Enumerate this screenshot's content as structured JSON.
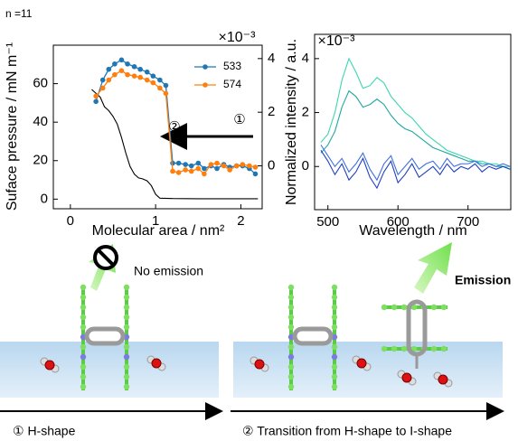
{
  "labels": {
    "panel_note": "n =11",
    "no_emission": "No emission",
    "emission": "Emission",
    "stage1": "① H-shape",
    "stage2": "② Transition from H-shape to I-shape"
  },
  "chart_data": [
    {
      "type": "line",
      "xlabel": "Molecular area / nm²",
      "ylabel": "Suface pressure / mN m⁻¹",
      "y2_offset_label": "×10⁻³",
      "xlim": [
        -0.2,
        2.25
      ],
      "xticks": [
        0,
        1,
        2
      ],
      "ylim": [
        -5,
        80
      ],
      "yticks": [
        0,
        20,
        40,
        60
      ],
      "y2lim": [
        -1.6,
        4.5
      ],
      "y2ticks": [
        0,
        2,
        4
      ],
      "legend": "upper right",
      "annotations": [
        "②",
        "①"
      ],
      "series": [
        {
          "color": "#000000",
          "marker": false,
          "x": [
            0.25,
            0.3,
            0.35,
            0.4,
            0.45,
            0.5,
            0.55,
            0.6,
            0.65,
            0.7,
            0.75,
            0.8,
            0.85,
            0.9,
            0.95,
            1.0,
            1.05,
            1.2,
            1.5,
            2.2
          ],
          "values": [
            57,
            55,
            53,
            48,
            46,
            43,
            39,
            32,
            24,
            17,
            13,
            11,
            10.5,
            9.5,
            7,
            2.5,
            0.5,
            0.3,
            0.2,
            0.2
          ]
        },
        {
          "name": "533",
          "color": "#1f77b4",
          "marker": true,
          "axis": "y2",
          "x": [
            0.3,
            0.38,
            0.45,
            0.52,
            0.6,
            0.67,
            0.75,
            0.82,
            0.9,
            0.97,
            1.05,
            1.12,
            1.2,
            1.27,
            1.35,
            1.42,
            1.5,
            1.57,
            1.65,
            1.72,
            1.8,
            1.87,
            1.95,
            2.02,
            2.1,
            2.17
          ],
          "values": [
            2.4,
            3.2,
            3.6,
            3.8,
            3.95,
            3.8,
            3.7,
            3.6,
            3.5,
            3.35,
            3.2,
            3.0,
            0.1,
            0.1,
            0.05,
            0.0,
            0.1,
            -0.1,
            0.0,
            -0.1,
            0.05,
            -0.05,
            0.0,
            0.0,
            -0.1,
            -0.3
          ]
        },
        {
          "name": "574",
          "color": "#ff7f0e",
          "marker": true,
          "axis": "y2",
          "x": [
            0.3,
            0.38,
            0.45,
            0.52,
            0.6,
            0.67,
            0.75,
            0.82,
            0.9,
            0.97,
            1.05,
            1.12,
            1.2,
            1.27,
            1.35,
            1.42,
            1.5,
            1.57,
            1.65,
            1.72,
            1.8,
            1.87,
            1.95,
            2.02,
            2.1,
            2.17
          ],
          "values": [
            2.6,
            2.9,
            3.2,
            3.4,
            3.55,
            3.4,
            3.35,
            3.3,
            3.2,
            3.1,
            2.9,
            2.7,
            -0.2,
            -0.25,
            -0.15,
            -0.2,
            -0.1,
            -0.3,
            0.05,
            0.1,
            0.0,
            -0.15,
            0.0,
            0.05,
            0.0,
            -0.05
          ]
        }
      ]
    },
    {
      "type": "line",
      "xlabel": "Wavelength / nm",
      "ylabel": "Normalized intensity / a.u.",
      "y_offset_label": "×10⁻³",
      "xlim": [
        481,
        761
      ],
      "xticks": [
        500,
        600,
        700
      ],
      "ylim": [
        -1.6,
        4.9
      ],
      "yticks": [
        0,
        2,
        4
      ],
      "series": [
        {
          "color": "#3cd6b0",
          "x": [
            490,
            500,
            510,
            520,
            530,
            540,
            550,
            560,
            570,
            580,
            590,
            600,
            610,
            620,
            630,
            640,
            650,
            660,
            670,
            680,
            690,
            700,
            710,
            720,
            730,
            740,
            750,
            760
          ],
          "values": [
            0.9,
            1.2,
            2.0,
            3.2,
            4.0,
            3.5,
            2.9,
            3.0,
            3.3,
            3.1,
            2.6,
            2.3,
            2.0,
            1.8,
            1.5,
            1.2,
            1.0,
            0.8,
            0.6,
            0.5,
            0.4,
            0.3,
            0.2,
            0.2,
            0.1,
            0.1,
            0.0,
            0.0
          ]
        },
        {
          "color": "#1fa8a0",
          "x": [
            490,
            500,
            510,
            520,
            530,
            540,
            550,
            560,
            570,
            580,
            590,
            600,
            610,
            620,
            630,
            640,
            650,
            660,
            670,
            680,
            690,
            700,
            710,
            720,
            730,
            740,
            750,
            760
          ],
          "values": [
            0.5,
            0.8,
            1.3,
            2.2,
            2.8,
            2.6,
            2.2,
            2.3,
            2.5,
            2.3,
            1.9,
            1.6,
            1.4,
            1.3,
            1.1,
            0.9,
            0.7,
            0.6,
            0.5,
            0.4,
            0.3,
            0.2,
            0.2,
            0.1,
            0.1,
            0.0,
            0.0,
            -0.1
          ]
        },
        {
          "color": "#1f3fbf",
          "x": [
            490,
            500,
            510,
            520,
            530,
            540,
            550,
            560,
            570,
            580,
            590,
            600,
            610,
            620,
            630,
            640,
            650,
            660,
            670,
            680,
            690,
            700,
            710,
            720,
            730,
            740,
            750,
            760
          ],
          "values": [
            0.6,
            0.2,
            -0.3,
            0.1,
            -0.5,
            -0.2,
            0.3,
            -0.4,
            -0.8,
            -0.2,
            0.2,
            -0.6,
            -0.3,
            0.1,
            -0.4,
            -0.2,
            0.0,
            -0.3,
            0.1,
            -0.2,
            0.0,
            -0.1,
            0.1,
            -0.2,
            0.0,
            -0.1,
            0.0,
            -0.1
          ]
        },
        {
          "color": "#3f6fe0",
          "x": [
            490,
            500,
            510,
            520,
            530,
            540,
            550,
            560,
            570,
            580,
            590,
            600,
            610,
            620,
            630,
            640,
            650,
            660,
            670,
            680,
            690,
            700,
            710,
            720,
            730,
            740,
            750,
            760
          ],
          "values": [
            0.8,
            0.4,
            0.0,
            0.3,
            -0.2,
            0.1,
            0.5,
            -0.1,
            -0.5,
            0.1,
            0.4,
            -0.3,
            0.0,
            0.3,
            -0.1,
            0.1,
            0.2,
            -0.1,
            0.3,
            0.0,
            0.1,
            0.1,
            0.2,
            0.0,
            0.1,
            0.0,
            0.1,
            0.0
          ]
        }
      ]
    }
  ]
}
